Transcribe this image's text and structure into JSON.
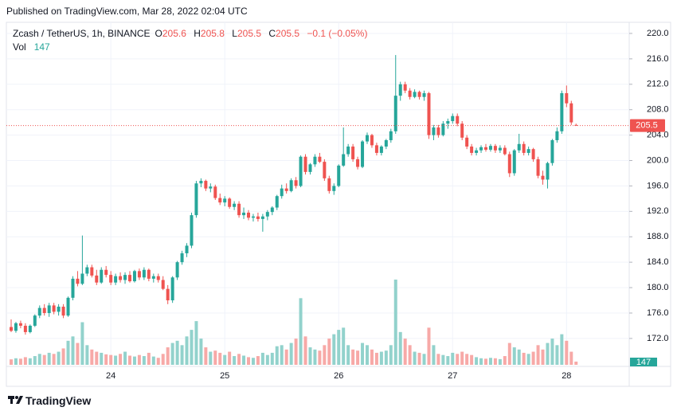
{
  "header": {
    "published": "Published on TradingView.com, Mar 28, 2022 02:04 UTC"
  },
  "footer": {
    "brand": "TradingView"
  },
  "chart_data": {
    "type": "candlestick",
    "legend": {
      "symbol": "Zcash / TetherUS, 1h, BINANCE",
      "open_label": "O",
      "open": 205.6,
      "high_label": "H",
      "high": 205.8,
      "low_label": "L",
      "low": 205.5,
      "close_label": "C",
      "close": 205.5,
      "change": "−0.1 (−0.05%)",
      "volume_label": "Vol",
      "volume": 147
    },
    "up_color": "#26a69a",
    "down_color": "#ef5350",
    "up_volume_color": "#92d2cc",
    "down_volume_color": "#f7a9a7",
    "grid": true,
    "ylim": [
      167.6,
      221.75
    ],
    "yticks": [
      {
        "value": 172,
        "label": "172.0"
      },
      {
        "value": 176,
        "label": "176.0"
      },
      {
        "value": 180,
        "label": "180.0"
      },
      {
        "value": 184,
        "label": "184.0"
      },
      {
        "value": 188,
        "label": "188.0"
      },
      {
        "value": 192,
        "label": "192.0"
      },
      {
        "value": 196,
        "label": "196.0"
      },
      {
        "value": 200,
        "label": "200.0"
      },
      {
        "value": 204,
        "label": "204.0"
      },
      {
        "value": 208,
        "label": "208.0"
      },
      {
        "value": 212,
        "label": "212.0"
      },
      {
        "value": 216,
        "label": "216.0"
      },
      {
        "value": 220,
        "label": "220.0"
      }
    ],
    "categories": [
      null,
      null,
      null,
      null,
      null,
      null,
      null,
      null,
      null,
      null,
      null,
      null,
      null,
      null,
      null,
      null,
      null,
      null,
      null,
      null,
      null,
      "24",
      null,
      null,
      null,
      null,
      null,
      null,
      null,
      null,
      null,
      null,
      null,
      null,
      null,
      null,
      null,
      null,
      null,
      null,
      null,
      null,
      null,
      null,
      null,
      "25",
      null,
      null,
      null,
      null,
      null,
      null,
      null,
      null,
      null,
      null,
      null,
      null,
      null,
      null,
      null,
      null,
      null,
      null,
      null,
      null,
      null,
      null,
      null,
      "26",
      null,
      null,
      null,
      null,
      null,
      null,
      null,
      null,
      null,
      null,
      null,
      null,
      null,
      null,
      null,
      null,
      null,
      null,
      null,
      null,
      null,
      null,
      null,
      "27",
      null,
      null,
      null,
      null,
      null,
      null,
      null,
      null,
      null,
      null,
      null,
      null,
      null,
      null,
      null,
      null,
      null,
      null,
      null,
      null,
      null,
      null,
      null,
      "28",
      null,
      null
    ],
    "ohlc": [
      [
        173.8,
        175.0,
        173.0,
        173.2
      ],
      [
        173.2,
        174.6,
        172.9,
        174.4
      ],
      [
        174.4,
        174.8,
        173.6,
        174.0
      ],
      [
        174.0,
        174.4,
        172.6,
        173.0
      ],
      [
        173.0,
        174.2,
        172.8,
        174.0
      ],
      [
        174.0,
        175.8,
        173.8,
        175.6
      ],
      [
        175.6,
        177.2,
        175.2,
        176.8
      ],
      [
        176.8,
        177.4,
        175.6,
        176.0
      ],
      [
        176.0,
        177.6,
        175.4,
        177.2
      ],
      [
        177.2,
        177.6,
        175.8,
        176.2
      ],
      [
        176.2,
        177.4,
        175.6,
        177.0
      ],
      [
        177.0,
        177.4,
        175.2,
        175.6
      ],
      [
        175.6,
        178.6,
        175.4,
        178.4
      ],
      [
        178.4,
        181.8,
        178.0,
        181.4
      ],
      [
        181.4,
        182.6,
        180.2,
        180.6
      ],
      [
        180.6,
        188.2,
        180.4,
        182.2
      ],
      [
        182.2,
        183.6,
        181.8,
        183.2
      ],
      [
        183.2,
        183.6,
        181.6,
        181.9
      ],
      [
        181.9,
        182.8,
        180.4,
        180.8
      ],
      [
        180.8,
        183.2,
        180.6,
        182.8
      ],
      [
        182.8,
        183.4,
        181.6,
        182.0
      ],
      [
        182.0,
        182.6,
        180.4,
        180.8
      ],
      [
        180.8,
        182.2,
        180.4,
        181.8
      ],
      [
        181.8,
        182.4,
        180.8,
        181.2
      ],
      [
        181.2,
        182.4,
        180.6,
        182.0
      ],
      [
        182.0,
        182.6,
        180.8,
        181.0
      ],
      [
        181.0,
        182.8,
        180.8,
        182.6
      ],
      [
        182.6,
        183.0,
        181.2,
        181.6
      ],
      [
        181.6,
        183.2,
        181.2,
        182.8
      ],
      [
        182.8,
        183.0,
        181.0,
        181.4
      ],
      [
        181.4,
        182.2,
        180.8,
        181.8
      ],
      [
        181.8,
        182.2,
        180.8,
        181.2
      ],
      [
        181.2,
        181.8,
        179.6,
        179.8
      ],
      [
        179.8,
        180.4,
        177.4,
        178.0
      ],
      [
        178.0,
        181.8,
        177.6,
        181.6
      ],
      [
        181.6,
        184.2,
        181.2,
        184.0
      ],
      [
        184.0,
        185.8,
        183.6,
        185.4
      ],
      [
        185.4,
        187.0,
        184.8,
        186.6
      ],
      [
        186.6,
        191.8,
        186.2,
        191.4
      ],
      [
        191.4,
        196.8,
        191.0,
        196.4
      ],
      [
        196.4,
        197.2,
        195.8,
        196.8
      ],
      [
        196.8,
        197.0,
        195.2,
        195.6
      ],
      [
        195.6,
        196.4,
        195.0,
        195.9
      ],
      [
        195.9,
        196.2,
        193.8,
        194.1
      ],
      [
        194.1,
        194.8,
        193.0,
        193.4
      ],
      [
        193.4,
        194.4,
        192.8,
        194.0
      ],
      [
        194.0,
        194.2,
        192.4,
        192.7
      ],
      [
        192.7,
        193.6,
        192.2,
        193.2
      ],
      [
        193.2,
        193.6,
        191.0,
        191.4
      ],
      [
        191.4,
        192.6,
        190.8,
        191.8
      ],
      [
        191.8,
        192.2,
        190.6,
        191.0
      ],
      [
        191.0,
        191.6,
        190.4,
        191.2
      ],
      [
        191.2,
        191.8,
        190.4,
        190.8
      ],
      [
        190.8,
        191.6,
        188.8,
        191.2
      ],
      [
        191.2,
        192.2,
        190.6,
        191.9
      ],
      [
        191.9,
        192.8,
        191.4,
        192.6
      ],
      [
        192.6,
        194.6,
        192.2,
        194.4
      ],
      [
        194.4,
        196.2,
        194.0,
        195.6
      ],
      [
        195.6,
        196.4,
        194.8,
        195.2
      ],
      [
        195.2,
        197.2,
        195.0,
        196.9
      ],
      [
        196.9,
        197.4,
        195.6,
        196.0
      ],
      [
        196.0,
        200.8,
        195.8,
        200.6
      ],
      [
        200.6,
        201.0,
        197.8,
        198.2
      ],
      [
        198.2,
        199.6,
        197.8,
        199.4
      ],
      [
        199.4,
        201.0,
        199.0,
        200.6
      ],
      [
        200.6,
        201.2,
        199.6,
        199.8
      ],
      [
        199.8,
        200.2,
        196.8,
        197.2
      ],
      [
        197.2,
        197.6,
        194.8,
        195.2
      ],
      [
        195.2,
        196.4,
        194.6,
        196.0
      ],
      [
        196.0,
        199.4,
        195.8,
        199.2
      ],
      [
        199.2,
        205.2,
        199.0,
        201.0
      ],
      [
        201.0,
        202.6,
        200.6,
        202.2
      ],
      [
        202.2,
        202.6,
        199.8,
        200.2
      ],
      [
        200.2,
        200.6,
        198.6,
        199.0
      ],
      [
        199.0,
        203.2,
        198.8,
        203.0
      ],
      [
        203.0,
        204.4,
        202.6,
        204.0
      ],
      [
        204.0,
        204.2,
        202.0,
        202.4
      ],
      [
        202.4,
        202.8,
        200.8,
        201.2
      ],
      [
        201.2,
        202.4,
        200.8,
        202.2
      ],
      [
        202.2,
        203.4,
        201.8,
        203.2
      ],
      [
        203.2,
        205.0,
        202.8,
        204.6
      ],
      [
        204.6,
        216.6,
        204.2,
        210.2
      ],
      [
        210.2,
        212.4,
        209.4,
        212.0
      ],
      [
        212.0,
        212.4,
        210.6,
        211.0
      ],
      [
        211.0,
        211.4,
        209.6,
        210.0
      ],
      [
        210.0,
        211.2,
        209.8,
        210.8
      ],
      [
        210.8,
        211.0,
        209.6,
        210.0
      ],
      [
        210.0,
        211.0,
        209.4,
        210.6
      ],
      [
        210.6,
        210.8,
        203.4,
        204.0
      ],
      [
        204.0,
        205.6,
        203.2,
        205.2
      ],
      [
        205.2,
        205.6,
        203.6,
        204.0
      ],
      [
        204.0,
        206.2,
        203.8,
        205.8
      ],
      [
        205.8,
        206.6,
        205.0,
        206.2
      ],
      [
        206.2,
        207.4,
        205.8,
        207.0
      ],
      [
        207.0,
        207.4,
        205.4,
        205.8
      ],
      [
        205.8,
        206.2,
        203.2,
        203.6
      ],
      [
        203.6,
        204.0,
        201.8,
        202.2
      ],
      [
        202.2,
        202.6,
        200.8,
        201.2
      ],
      [
        201.2,
        202.0,
        200.8,
        201.6
      ],
      [
        201.6,
        202.4,
        201.2,
        202.1
      ],
      [
        202.1,
        202.6,
        201.4,
        201.7
      ],
      [
        201.7,
        202.6,
        201.4,
        202.3
      ],
      [
        202.3,
        202.6,
        201.2,
        201.6
      ],
      [
        201.6,
        202.4,
        201.2,
        202.0
      ],
      [
        202.0,
        202.4,
        200.8,
        201.0
      ],
      [
        201.0,
        201.4,
        197.4,
        198.0
      ],
      [
        198.0,
        201.8,
        197.6,
        201.6
      ],
      [
        201.6,
        204.2,
        201.2,
        202.6
      ],
      [
        202.6,
        203.0,
        200.8,
        201.2
      ],
      [
        201.2,
        202.2,
        200.8,
        201.8
      ],
      [
        201.8,
        202.0,
        199.8,
        200.2
      ],
      [
        200.2,
        200.6,
        197.2,
        197.6
      ],
      [
        197.6,
        198.4,
        196.2,
        197.0
      ],
      [
        197.0,
        199.8,
        195.6,
        199.6
      ],
      [
        199.6,
        203.4,
        199.2,
        203.2
      ],
      [
        203.2,
        205.2,
        202.8,
        204.6
      ],
      [
        204.6,
        211.0,
        204.2,
        210.6
      ],
      [
        210.6,
        211.8,
        208.4,
        209.0
      ],
      [
        209.0,
        209.4,
        205.6,
        206.0
      ],
      [
        205.6,
        205.8,
        205.5,
        205.5
      ]
    ],
    "volume": [
      250,
      300,
      280,
      350,
      300,
      400,
      500,
      450,
      550,
      500,
      600,
      750,
      1100,
      1300,
      1000,
      1950,
      900,
      700,
      600,
      550,
      480,
      450,
      420,
      500,
      600,
      420,
      380,
      450,
      400,
      550,
      380,
      320,
      500,
      800,
      1000,
      1100,
      900,
      1300,
      1600,
      2000,
      1200,
      800,
      600,
      650,
      550,
      450,
      600,
      400,
      500,
      420,
      350,
      320,
      400,
      550,
      450,
      550,
      850,
      900,
      700,
      1000,
      1200,
      3050,
      1300,
      800,
      700,
      650,
      900,
      1200,
      1400,
      1600,
      1700,
      900,
      700,
      650,
      1000,
      900,
      700,
      550,
      600,
      650,
      900,
      3900,
      1500,
      1200,
      900,
      600,
      550,
      500,
      1700,
      900,
      500,
      450,
      400,
      550,
      500,
      600,
      500,
      450,
      350,
      300,
      280,
      320,
      300,
      260,
      400,
      1000,
      800,
      700,
      550,
      500,
      600,
      900,
      700,
      1000,
      1200,
      900,
      1400,
      1100,
      600,
      147
    ]
  }
}
